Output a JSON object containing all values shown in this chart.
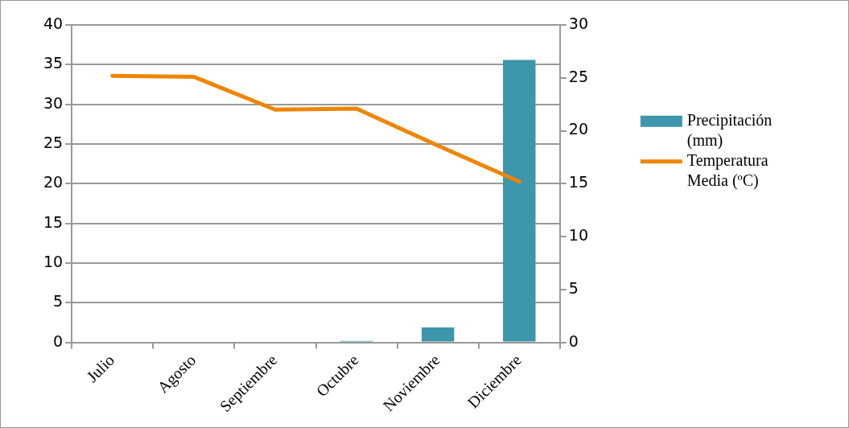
{
  "chart_data": {
    "type": "bar",
    "categories": [
      "Julio",
      "Agosto",
      "Septiembre",
      "Octubre",
      "Noviembre",
      "Diciembre"
    ],
    "series": [
      {
        "name": "Precipitación (mm)",
        "color": "#3d96ab",
        "values": [
          0,
          0,
          0,
          0.2,
          1.9,
          35.6
        ]
      },
      {
        "name": "Temperatura Media (ºC)",
        "type": "line",
        "axis": "y2",
        "color": "#ef8506",
        "values": [
          25.2,
          25.1,
          22.0,
          22.1,
          18.6,
          15.2
        ]
      }
    ],
    "ylim": [
      0,
      40
    ],
    "yticks": [
      0,
      5,
      10,
      15,
      20,
      25,
      30,
      35,
      40
    ],
    "y2lim": [
      0,
      30
    ],
    "y2ticks": [
      0,
      5,
      10,
      15,
      20,
      25,
      30
    ],
    "grid": "y",
    "legend": "right",
    "marker": "none",
    "line_style": "solid"
  }
}
